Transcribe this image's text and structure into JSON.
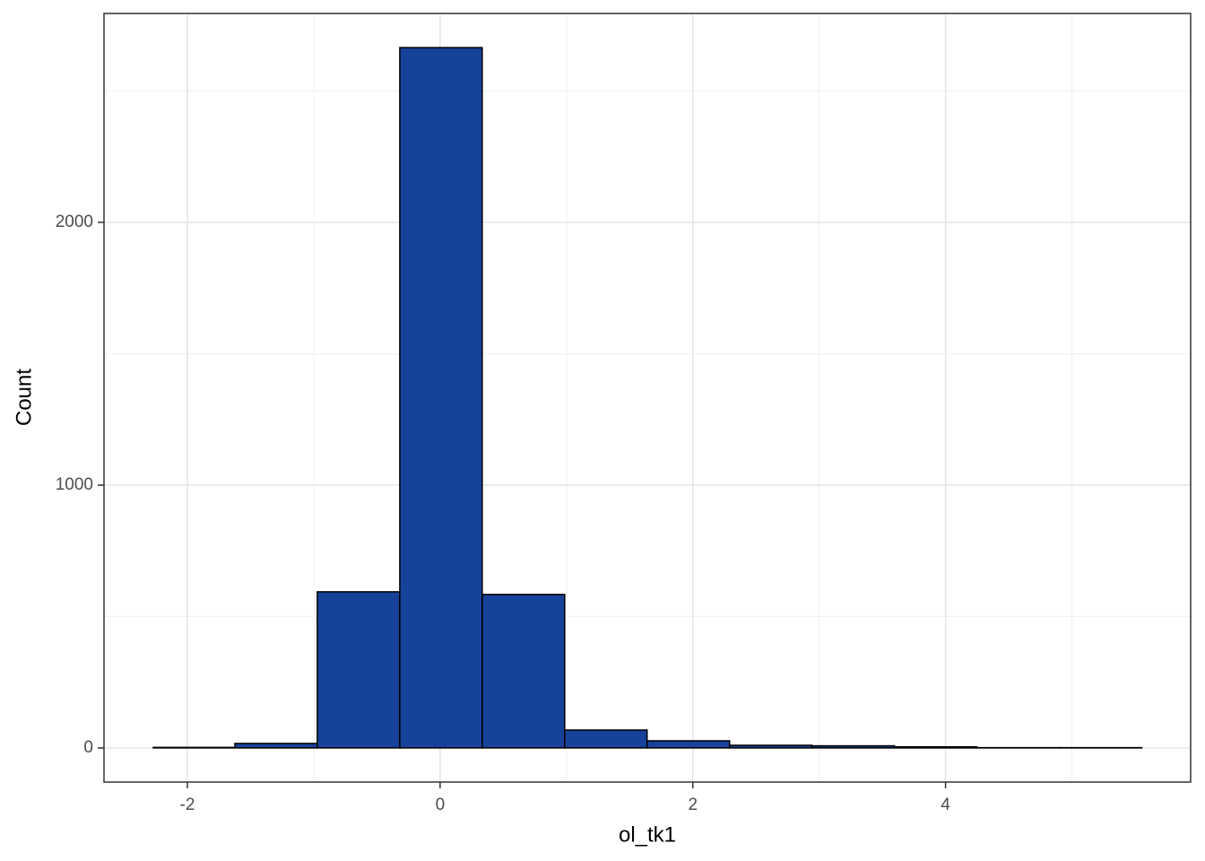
{
  "chart_data": {
    "type": "histogram",
    "x_label": "ol_tk1",
    "y_label": "Count",
    "bins": [
      -2.27,
      -1.624,
      -0.972,
      -0.319,
      0.333,
      0.986,
      1.638,
      2.291,
      2.943,
      3.596,
      4.248,
      4.901,
      5.553
    ],
    "counts": [
      2,
      17,
      594,
      2665,
      584,
      68,
      27,
      10,
      8,
      4,
      1,
      1
    ],
    "color": "#17429a",
    "edge_color": "#000000",
    "xlim": [
      -2.66,
      5.94
    ],
    "xticks": [
      -2,
      0,
      2,
      4
    ],
    "x_minor_grid": [
      -1,
      1,
      3,
      5
    ],
    "ylim": [
      -130,
      2795
    ],
    "yticks": [
      0,
      1000,
      2000
    ],
    "y_minor_grid": [
      500,
      1500,
      2500
    ],
    "grid": true
  }
}
